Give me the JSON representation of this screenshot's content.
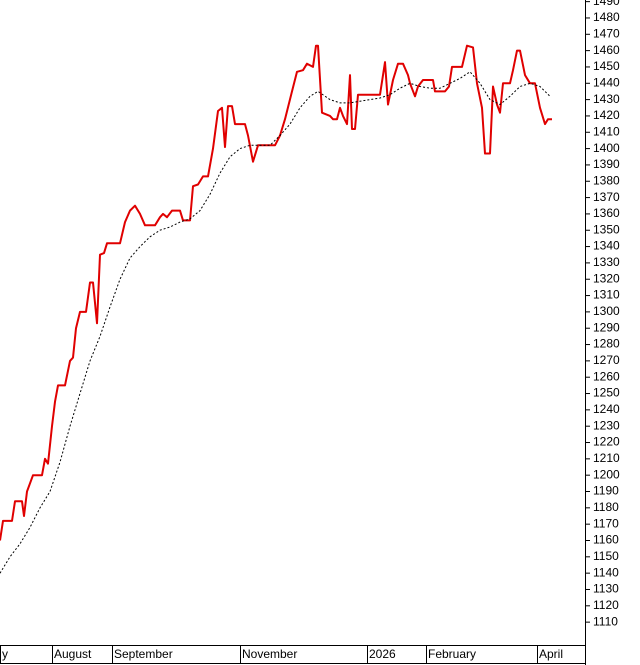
{
  "chart_data": {
    "type": "line",
    "xlim": [
      0,
      585
    ],
    "xticks": [
      {
        "value": 0,
        "label": "y"
      },
      {
        "value": 52,
        "label": "August"
      },
      {
        "value": 112,
        "label": "September"
      },
      {
        "value": 240,
        "label": "November"
      },
      {
        "value": 367,
        "label": "2026"
      },
      {
        "value": 426,
        "label": "February"
      },
      {
        "value": 537,
        "label": "April"
      }
    ],
    "ylim": [
      1096,
      1491
    ],
    "yticks": [
      1110,
      1120,
      1130,
      1140,
      1150,
      1160,
      1170,
      1180,
      1190,
      1200,
      1210,
      1220,
      1230,
      1240,
      1250,
      1260,
      1270,
      1280,
      1290,
      1300,
      1310,
      1320,
      1330,
      1340,
      1350,
      1360,
      1370,
      1380,
      1390,
      1400,
      1410,
      1420,
      1430,
      1440,
      1450,
      1460,
      1470,
      1480,
      1490
    ],
    "series": [
      {
        "color": "#e00000",
        "style": "solid",
        "x": [
          0,
          3,
          12,
          15,
          22,
          24,
          27,
          33,
          42,
          45,
          48,
          52,
          55,
          58,
          65,
          70,
          73,
          76,
          80,
          86,
          90,
          93,
          97,
          100,
          104,
          107,
          120,
          125,
          130,
          135,
          140,
          145,
          155,
          160,
          163,
          167,
          172,
          180,
          183,
          190,
          193,
          198,
          203,
          208,
          213,
          218,
          222,
          225,
          228,
          232,
          235,
          245,
          248,
          253,
          258,
          275,
          280,
          285,
          292,
          297,
          303,
          307,
          313,
          316,
          318,
          322,
          330,
          333,
          337,
          340,
          343,
          347,
          350,
          352,
          355,
          358,
          380,
          385,
          388,
          393,
          398,
          403,
          408,
          410,
          415,
          418,
          423,
          433,
          435,
          440,
          445,
          449,
          452,
          462,
          467,
          473,
          477,
          482,
          485,
          490,
          493,
          497,
          500,
          503,
          510,
          513,
          517,
          520,
          525,
          530,
          535,
          540,
          545,
          548,
          552
        ],
        "values": [
          1160,
          1172,
          1172,
          1184,
          1184,
          1175,
          1190,
          1200,
          1200,
          1210,
          1207,
          1230,
          1245,
          1255,
          1255,
          1270,
          1272,
          1290,
          1300,
          1300,
          1318,
          1318,
          1293,
          1335,
          1336,
          1342,
          1342,
          1355,
          1362,
          1365,
          1360,
          1353,
          1353,
          1358,
          1360,
          1358,
          1362,
          1362,
          1356,
          1356,
          1377,
          1378,
          1383,
          1383,
          1400,
          1423,
          1425,
          1401,
          1426,
          1426,
          1415,
          1415,
          1408,
          1392,
          1402,
          1402,
          1408,
          1418,
          1435,
          1447,
          1448,
          1452,
          1450,
          1463,
          1463,
          1422,
          1420,
          1418,
          1418,
          1425,
          1420,
          1415,
          1445,
          1412,
          1412,
          1433,
          1433,
          1453,
          1427,
          1442,
          1452,
          1452,
          1445,
          1440,
          1432,
          1438,
          1442,
          1442,
          1435,
          1435,
          1435,
          1438,
          1450,
          1450,
          1463,
          1462,
          1440,
          1425,
          1397,
          1397,
          1438,
          1427,
          1422,
          1440,
          1440,
          1448,
          1460,
          1460,
          1445,
          1440,
          1440,
          1425,
          1415,
          1418,
          1418
        ]
      },
      {
        "color": "#000000",
        "style": "dotted",
        "x": [
          0,
          10,
          20,
          30,
          40,
          50,
          60,
          70,
          80,
          90,
          100,
          110,
          120,
          130,
          140,
          150,
          160,
          170,
          180,
          190,
          200,
          210,
          220,
          230,
          240,
          250,
          260,
          270,
          280,
          290,
          300,
          310,
          318,
          330,
          340,
          350,
          360,
          370,
          380,
          390,
          400,
          410,
          420,
          430,
          440,
          450,
          460,
          470,
          480,
          490,
          500,
          510,
          520,
          530,
          540,
          550
        ],
        "values": [
          1140,
          1150,
          1158,
          1168,
          1180,
          1190,
          1208,
          1230,
          1250,
          1270,
          1285,
          1303,
          1320,
          1333,
          1340,
          1346,
          1350,
          1352,
          1355,
          1357,
          1362,
          1372,
          1385,
          1395,
          1400,
          1402,
          1402,
          1402,
          1408,
          1415,
          1425,
          1432,
          1435,
          1430,
          1428,
          1428,
          1429,
          1430,
          1431,
          1433,
          1437,
          1440,
          1438,
          1437,
          1437,
          1440,
          1443,
          1447,
          1440,
          1430,
          1427,
          1432,
          1438,
          1440,
          1438,
          1432
        ]
      }
    ]
  }
}
